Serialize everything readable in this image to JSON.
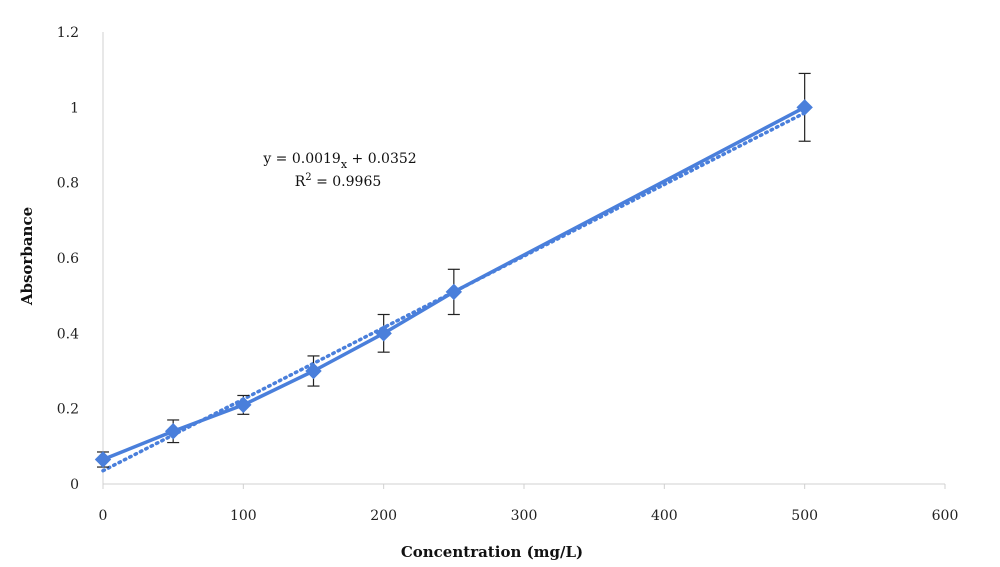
{
  "chart_data": {
    "type": "line",
    "title": "",
    "xlabel": "Concentration (mg/L)",
    "ylabel": "Absorbance",
    "xlim": [
      0,
      600
    ],
    "ylim": [
      0,
      1.2
    ],
    "x_ticks": [
      0,
      100,
      200,
      300,
      400,
      500,
      600
    ],
    "x_tick_labels": [
      "0",
      "100",
      "200",
      "300",
      "400",
      "500",
      "600"
    ],
    "y_ticks": [
      0,
      0.2,
      0.4,
      0.6,
      0.8,
      1,
      1.2
    ],
    "y_tick_labels": [
      "0",
      "0.2",
      "0.4",
      "0.6",
      "0.8",
      "1",
      "1.2"
    ],
    "grid": false,
    "legend": "none",
    "series": [
      {
        "x": [
          0,
          50,
          100,
          150,
          200,
          250,
          500
        ],
        "y": [
          0.065,
          0.14,
          0.21,
          0.3,
          0.4,
          0.51,
          1.0
        ],
        "error": [
          0.02,
          0.03,
          0.025,
          0.04,
          0.05,
          0.06,
          0.09
        ],
        "marker": "diamond",
        "color": "#4a7fdb"
      }
    ],
    "trendline": {
      "type": "linear",
      "slope": 0.0019,
      "intercept": 0.0352,
      "x_range": [
        0,
        500
      ],
      "style": "dotted",
      "color": "#4a7fdb"
    },
    "annotation": {
      "equation_prefix": "y = 0.0019",
      "equation_sub": "x",
      "equation_suffix": " + 0.0352",
      "r2_prefix": "R",
      "r2_sup": "2",
      "r2_suffix": " = 0.9965"
    },
    "colors": {
      "series": "#4a7fdb",
      "axis": "#d0d0d0",
      "error_bar": "#222222"
    }
  }
}
